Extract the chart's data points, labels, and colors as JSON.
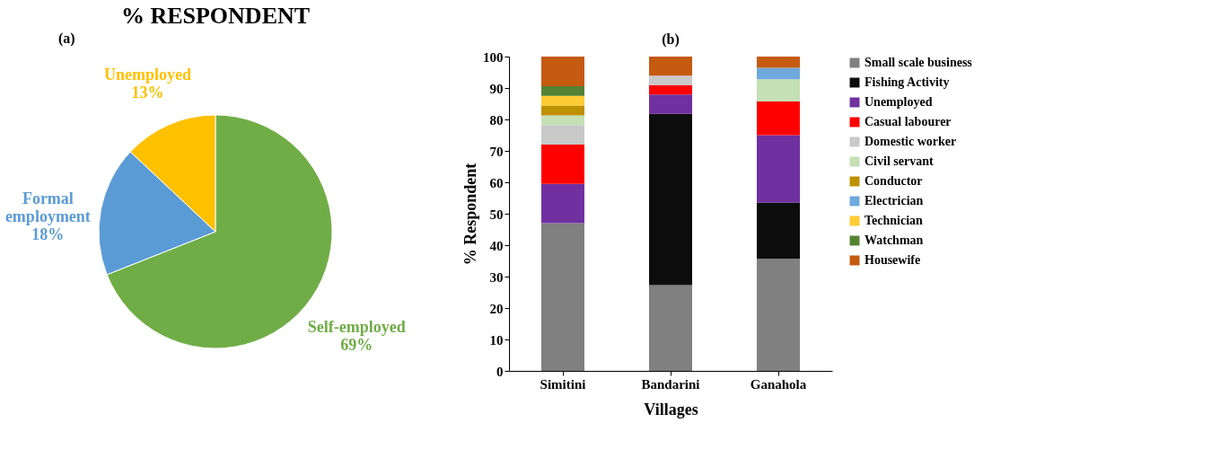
{
  "chart_data": [
    {
      "type": "pie",
      "title": "% RESPONDENT",
      "annotations": [
        "(a)"
      ],
      "categories": [
        "Self-employed",
        "Formal employment",
        "Unemployed"
      ],
      "values": [
        69,
        18,
        13
      ],
      "colors": [
        "#70ad47",
        "#5b9bd5",
        "#ffc000"
      ],
      "value_labels": [
        "69%",
        "18%",
        "13%"
      ],
      "legend": false
    },
    {
      "type": "bar",
      "title": "(b)",
      "xlabel": "Villages",
      "ylabel": "% Respondent",
      "categories": [
        "Simitini",
        "Bandarini",
        "Ganahola"
      ],
      "stacked": true,
      "ylim": [
        0,
        100
      ],
      "yticks": [
        0,
        10,
        20,
        30,
        40,
        50,
        60,
        70,
        80,
        90,
        100
      ],
      "grid": false,
      "legend": "right",
      "series": [
        {
          "name": "Small scale business",
          "color": "#808080",
          "values": [
            47.0,
            27.3,
            35.7
          ]
        },
        {
          "name": "Fishing Activity",
          "color": "#0d0d0d",
          "values": [
            null,
            54.5,
            17.9
          ]
        },
        {
          "name": "Unemployed",
          "color": "#7030a0",
          "values": [
            12.5,
            6.1,
            21.4
          ]
        },
        {
          "name": "Casual labourer",
          "color": "#ff0000",
          "values": [
            12.5,
            3.0,
            10.7
          ]
        },
        {
          "name": "Domestic worker",
          "color": "#c9c9c9",
          "values": [
            6.2,
            3.0,
            null
          ]
        },
        {
          "name": "Civil servant",
          "color": "#c5e0b4",
          "values": [
            3.1,
            null,
            7.1
          ]
        },
        {
          "name": "Conductor",
          "color": "#bf9000",
          "values": [
            3.1,
            null,
            null
          ]
        },
        {
          "name": "Electrician",
          "color": "#6fa8dc",
          "values": [
            null,
            null,
            3.6
          ]
        },
        {
          "name": "Technician",
          "color": "#ffcc33",
          "values": [
            3.1,
            null,
            null
          ]
        },
        {
          "name": "Watchman",
          "color": "#548235",
          "values": [
            3.1,
            null,
            null
          ]
        },
        {
          "name": "Housewife",
          "color": "#c55a11",
          "values": [
            9.4,
            6.1,
            3.6
          ]
        }
      ]
    }
  ]
}
